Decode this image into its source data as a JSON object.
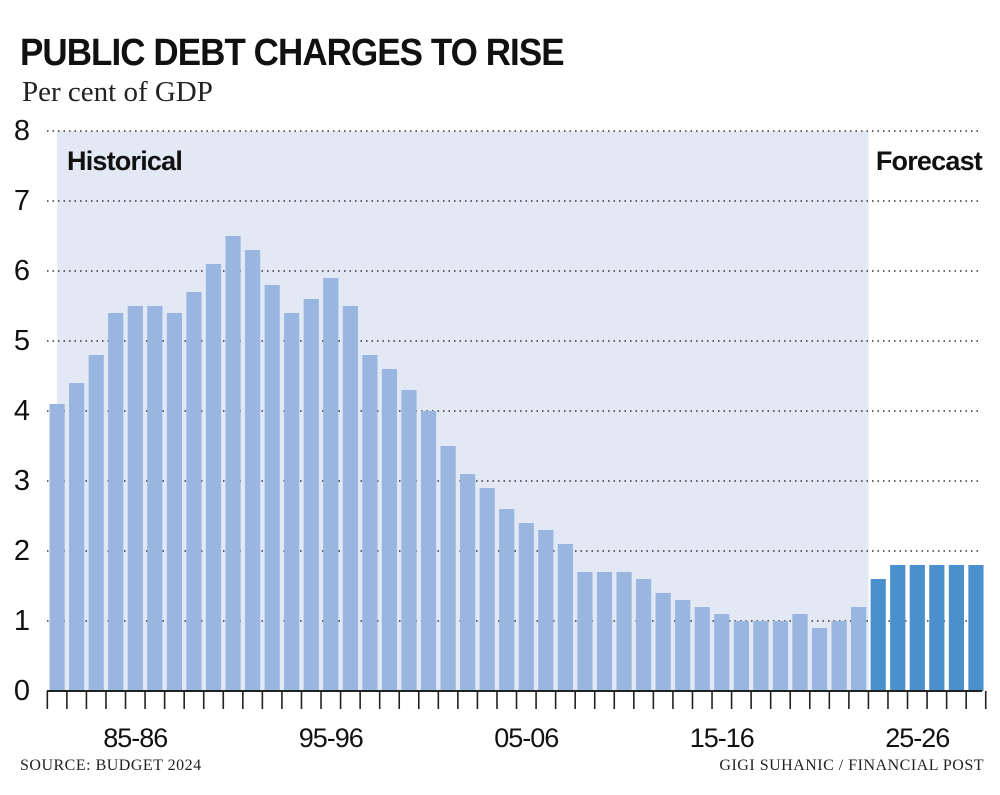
{
  "title": "PUBLIC DEBT CHARGES TO RISE",
  "subtitle": "Per cent of GDP",
  "source": "SOURCE: BUDGET 2024",
  "credit": "GIGI SUHANIC / FINANCIAL POST",
  "colors": {
    "historical_bar": "#98B6E0",
    "forecast_bar": "#4A90CC",
    "historical_band": "#E2E9F5",
    "grid": "#333333",
    "text": "#111111"
  },
  "chart_data": {
    "type": "bar",
    "region_labels": [
      "Historical",
      "Forecast"
    ],
    "x_tick_labels": [
      "85-86",
      "95-96",
      "05-06",
      "15-16",
      "25-26"
    ],
    "x_tick_label_indices": [
      4,
      14,
      24,
      34,
      44
    ],
    "ylim": [
      0,
      8
    ],
    "y_ticks": [
      0,
      1,
      2,
      3,
      4,
      5,
      6,
      7,
      8
    ],
    "grid": true,
    "historical_count": 42,
    "forecast_count": 6,
    "values": [
      4.1,
      4.4,
      4.8,
      5.4,
      5.5,
      5.5,
      5.4,
      5.7,
      6.1,
      6.5,
      6.3,
      5.8,
      5.4,
      5.6,
      5.9,
      5.5,
      4.8,
      4.6,
      4.3,
      4.0,
      3.5,
      3.1,
      2.9,
      2.6,
      2.4,
      2.3,
      2.1,
      1.7,
      1.7,
      1.7,
      1.6,
      1.4,
      1.3,
      1.2,
      1.1,
      1.0,
      1.0,
      1.0,
      1.1,
      0.9,
      1.0,
      1.2,
      1.6,
      1.8,
      1.8,
      1.8,
      1.8,
      1.8
    ]
  }
}
